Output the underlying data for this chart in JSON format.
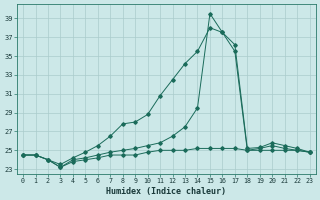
{
  "title": "",
  "xlabel": "Humidex (Indice chaleur)",
  "bg_color": "#cce8e8",
  "grid_color": "#aacccc",
  "line_color": "#1a6b5a",
  "x_values": [
    0,
    1,
    2,
    3,
    4,
    5,
    6,
    7,
    8,
    9,
    10,
    11,
    12,
    13,
    14,
    15,
    16,
    17,
    18,
    19,
    20,
    21,
    22,
    23
  ],
  "y_bottom": [
    24.5,
    24.5,
    24.0,
    23.2,
    23.8,
    24.0,
    24.2,
    24.5,
    24.5,
    24.5,
    24.8,
    25.0,
    25.0,
    25.0,
    25.2,
    25.2,
    25.2,
    25.2,
    25.0,
    25.0,
    25.0,
    25.0,
    25.0,
    24.8
  ],
  "y_middle": [
    24.5,
    24.5,
    24.0,
    23.5,
    24.2,
    24.8,
    25.5,
    26.5,
    27.8,
    28.0,
    28.8,
    30.8,
    32.5,
    34.2,
    35.5,
    38.0,
    37.5,
    36.2,
    25.2,
    25.3,
    25.8,
    25.5,
    25.2,
    24.8
  ],
  "y_top": [
    24.5,
    24.5,
    24.0,
    23.2,
    24.0,
    24.2,
    24.5,
    24.8,
    25.0,
    25.2,
    25.5,
    25.8,
    26.5,
    27.5,
    29.5,
    39.5,
    37.5,
    35.5,
    25.0,
    25.2,
    25.5,
    25.2,
    25.0,
    24.8
  ],
  "ylim": [
    22.5,
    40.5
  ],
  "yticks": [
    23,
    25,
    27,
    29,
    31,
    33,
    35,
    37,
    39
  ],
  "xlim": [
    -0.5,
    23.5
  ]
}
